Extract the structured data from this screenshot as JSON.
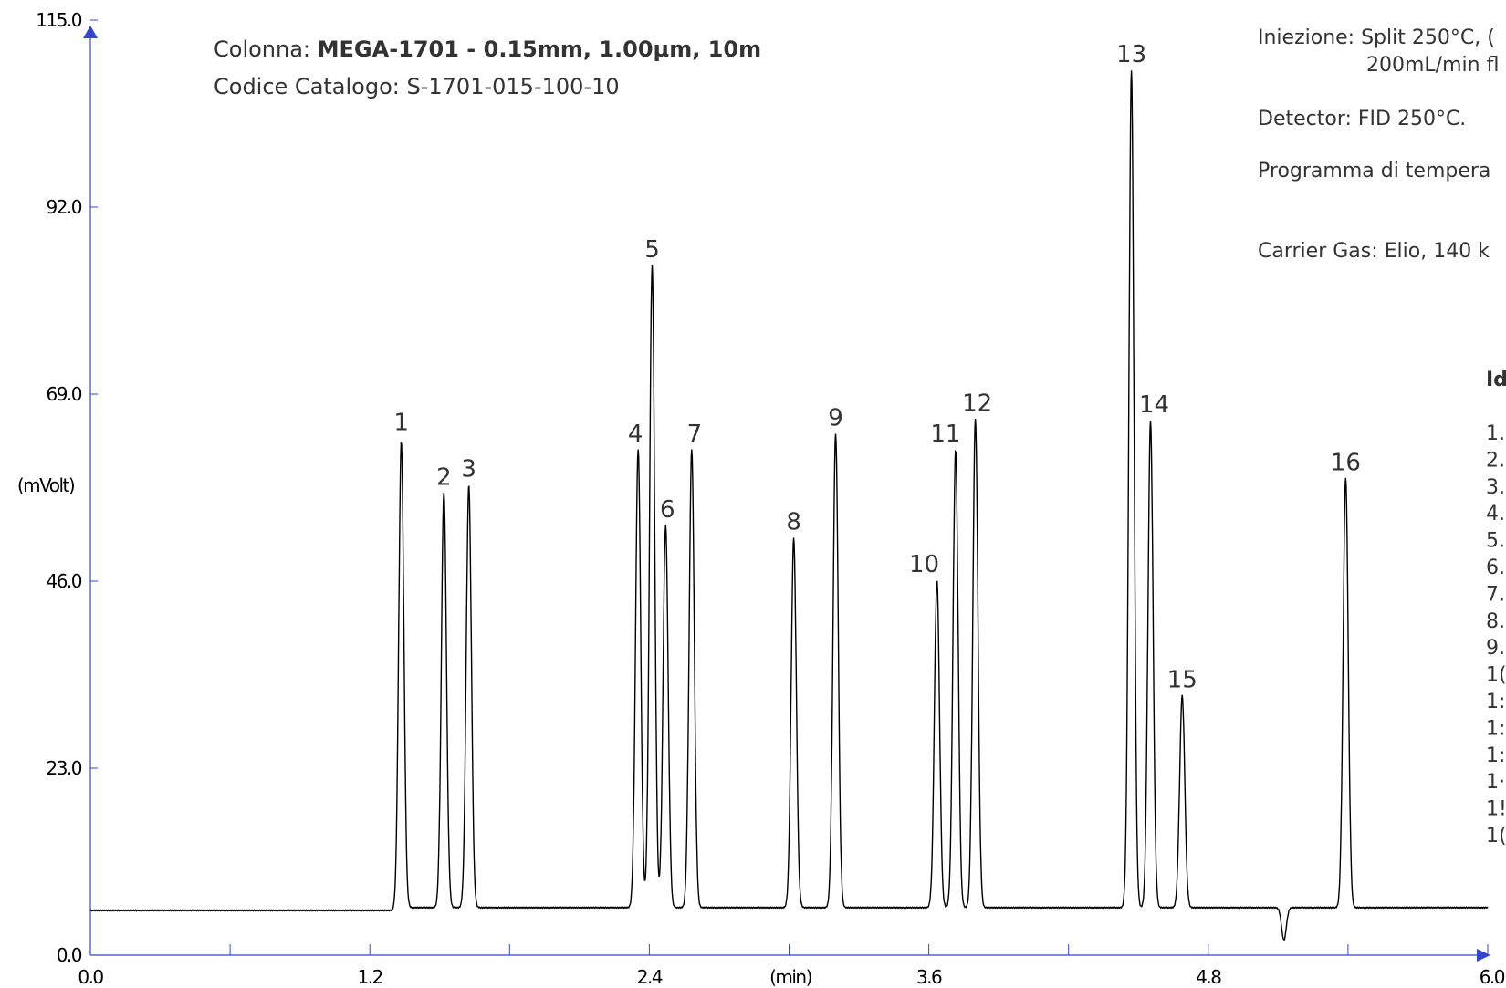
{
  "colors": {
    "axis": "#3346d1",
    "trace": "#000000",
    "text": "#333333"
  },
  "header": {
    "column_prefix": "Colonna: ",
    "column_value": "MEGA-1701 - 0.15mm, 1.00µm, 10m",
    "catalog": "Codice Catalogo: S-1701-015-100-10"
  },
  "conditions": {
    "injection_line1": "Iniezione: Split 250°C, (",
    "injection_line2": "200mL/min fl",
    "detector": "Detector: FID 250°C.",
    "program": "Programma di tempera",
    "carrier": "Carrier Gas: Elio, 140 k"
  },
  "identification": {
    "title": "Id",
    "items": [
      "1.",
      "2.",
      "3.",
      "4.",
      "5.",
      "6.",
      "7.",
      "8.",
      "9.",
      "1(",
      "1:",
      "1:",
      "1:",
      "1·",
      "1!",
      "1("
    ]
  },
  "chart_data": {
    "type": "line",
    "title": "",
    "xlabel": "(min)",
    "ylabel": "(mVolt)",
    "xlim": [
      0.0,
      6.0
    ],
    "ylim": [
      0.0,
      115.0
    ],
    "x_tick_labels": [
      "0.0",
      "1.2",
      "2.4",
      "3.6",
      "4.8",
      "6.0"
    ],
    "y_tick_labels": [
      "0.0",
      "23.0",
      "46.0",
      "69.0",
      "92.0",
      "115.0"
    ],
    "baseline": 5.5,
    "peaks": [
      {
        "label": "1",
        "rt": 1.335,
        "height": 63.2
      },
      {
        "label": "2",
        "rt": 1.518,
        "height": 56.5
      },
      {
        "label": "3",
        "rt": 1.625,
        "height": 57.5
      },
      {
        "label": "4",
        "rt": 2.352,
        "height": 61.8
      },
      {
        "label": "5",
        "rt": 2.412,
        "height": 84.5
      },
      {
        "label": "6",
        "rt": 2.47,
        "height": 52.5
      },
      {
        "label": "7",
        "rt": 2.582,
        "height": 61.8
      },
      {
        "label": "8",
        "rt": 3.02,
        "height": 51.0
      },
      {
        "label": "9",
        "rt": 3.2,
        "height": 63.8
      },
      {
        "label": "10",
        "rt": 3.635,
        "height": 45.8
      },
      {
        "label": "11",
        "rt": 3.715,
        "height": 61.8
      },
      {
        "label": "12",
        "rt": 3.8,
        "height": 65.6
      },
      {
        "label": "13",
        "rt": 4.47,
        "height": 108.5
      },
      {
        "label": "14",
        "rt": 4.552,
        "height": 65.4
      },
      {
        "label": "15",
        "rt": 4.688,
        "height": 31.6
      },
      {
        "label": "16",
        "rt": 5.39,
        "height": 58.3
      }
    ],
    "minor_peaks": [
      {
        "rt": 5.125,
        "height": 1.5
      }
    ]
  }
}
